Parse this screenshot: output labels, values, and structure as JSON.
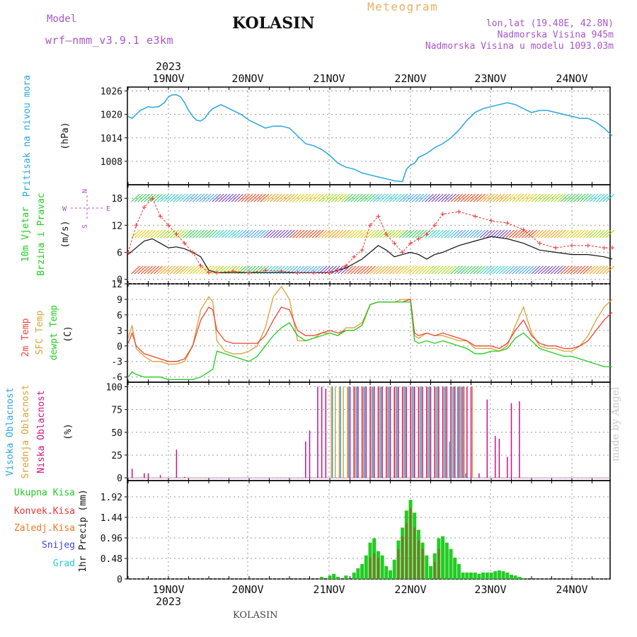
{
  "header": {
    "model_label": "Model",
    "model_name": "wrf–nmm_v3.9.1  e3km",
    "station": "KOLASIN",
    "meteogram": "Meteogram",
    "coords": "lon,lat (19.48E, 42.8N)",
    "elevation": "Nadmorska Visina 945m",
    "model_elevation": "Nadmorska Visina u modelu 1093.03m",
    "footer_station": "KOLASIN",
    "watermark": "made by Angel"
  },
  "colors": {
    "pressure": "#29a6e0",
    "precip_total": "#22cc22",
    "precip_conv": "#ee3333",
    "precip_frozen": "#ee7722",
    "precip_snow": "#4444dd",
    "precip_hail": "#22cccc",
    "temp_2m": "#ee4433",
    "temp_sfc": "#d9a23a",
    "temp_dew": "#22cc22",
    "cloud_high": "#29a6e0",
    "cloud_mid": "#d9a23a",
    "cloud_low": "#cc1188",
    "label_purple": "#aa55cc",
    "label_orange": "#e8a040",
    "wind_label": "#22cc22",
    "wind_speed": "#111111",
    "wind_gust": "#ee3333"
  },
  "chart_data": [
    {
      "type": "line",
      "name": "pressure",
      "ylabel": "Pritisak na nivou mora",
      "unit": "(hPa)",
      "yticks": [
        "1026",
        "1020",
        "1014",
        "1008"
      ],
      "ylim": [
        1002,
        1027
      ],
      "x_day_labels": [
        "19NOV",
        "20NOV",
        "21NOV",
        "22NOV",
        "23NOV",
        "24NOV"
      ],
      "x_year": "2023",
      "xlim": [
        -0.5,
        5.5
      ],
      "x": [
        -0.5,
        -0.45,
        -0.4,
        -0.35,
        -0.3,
        -0.25,
        -0.2,
        -0.12,
        -0.05,
        0,
        0.05,
        0.1,
        0.15,
        0.2,
        0.25,
        0.3,
        0.35,
        0.4,
        0.45,
        0.5,
        0.55,
        0.6,
        0.65,
        0.7,
        0.8,
        0.9,
        1.0,
        1.1,
        1.2,
        1.3,
        1.4,
        1.5,
        1.6,
        1.7,
        1.8,
        1.9,
        2.0,
        2.1,
        2.2,
        2.3,
        2.4,
        2.5,
        2.6,
        2.7,
        2.8,
        2.9,
        2.95,
        3.0,
        3.05,
        3.1,
        3.2,
        3.3,
        3.4,
        3.5,
        3.6,
        3.7,
        3.8,
        3.9,
        4.0,
        4.1,
        4.2,
        4.3,
        4.4,
        4.5,
        4.6,
        4.7,
        4.8,
        4.9,
        5.0,
        5.1,
        5.2,
        5.3,
        5.4,
        5.5
      ],
      "values": [
        1019.5,
        1019.0,
        1020.0,
        1021.0,
        1021.5,
        1022.0,
        1021.8,
        1022.0,
        1023.0,
        1024.5,
        1025.0,
        1025.0,
        1024.5,
        1023.0,
        1021.0,
        1019.5,
        1018.5,
        1018.3,
        1019.0,
        1020.5,
        1021.5,
        1022.0,
        1022.5,
        1022.0,
        1021.0,
        1020.0,
        1018.5,
        1017.5,
        1016.5,
        1017.0,
        1017.0,
        1016.5,
        1014.5,
        1012.5,
        1012.0,
        1011.0,
        1009.5,
        1007.5,
        1006.5,
        1006.0,
        1005.0,
        1004.5,
        1004.0,
        1003.5,
        1003.0,
        1002.8,
        1006.0,
        1007.0,
        1007.5,
        1009.0,
        1010.0,
        1011.5,
        1012.5,
        1014.0,
        1016.0,
        1018.5,
        1020.5,
        1021.5,
        1022.0,
        1022.5,
        1023.0,
        1022.5,
        1021.5,
        1020.5,
        1021.0,
        1021.0,
        1020.5,
        1020.0,
        1019.5,
        1019.0,
        1019.0,
        1018.0,
        1016.5,
        1014.5
      ]
    },
    {
      "type": "line",
      "name": "wind",
      "ylabel_line1": "10m Vjetar",
      "ylabel_line2": "Brzina i Pravac",
      "unit": "(m/s)",
      "yticks": [
        "18",
        "12",
        "6",
        "0"
      ],
      "ylim": [
        -1,
        21
      ],
      "compass": {
        "n": "N",
        "s": "S",
        "w": "W",
        "e": "E"
      },
      "x": [
        -0.5,
        -0.4,
        -0.3,
        -0.2,
        -0.1,
        0,
        0.1,
        0.2,
        0.3,
        0.4,
        0.5,
        0.6,
        0.8,
        1.0,
        1.2,
        1.4,
        1.6,
        1.8,
        2.0,
        2.1,
        2.2,
        2.3,
        2.4,
        2.5,
        2.6,
        2.7,
        2.8,
        2.9,
        3.0,
        3.1,
        3.2,
        3.3,
        3.4,
        3.6,
        3.8,
        4.0,
        4.2,
        4.4,
        4.6,
        4.8,
        5.0,
        5.2,
        5.4,
        5.5
      ],
      "speed": [
        5.5,
        7.0,
        8.5,
        9.0,
        8.0,
        7.0,
        7.2,
        6.8,
        6.0,
        5.0,
        2.0,
        1.5,
        1.5,
        1.5,
        1.5,
        1.5,
        1.5,
        1.5,
        1.5,
        2.0,
        2.5,
        3.5,
        4.5,
        6.0,
        7.5,
        6.5,
        5.0,
        5.5,
        6.0,
        5.5,
        4.5,
        5.5,
        6.0,
        7.5,
        8.5,
        9.5,
        9.0,
        8.0,
        6.5,
        6.0,
        5.5,
        5.5,
        5.0,
        4.5
      ],
      "gust": [
        6.0,
        12.0,
        16.0,
        18.0,
        14.0,
        12.0,
        10.0,
        8.0,
        6.0,
        3.0,
        1.5,
        1.5,
        1.8,
        1.5,
        2.0,
        1.8,
        1.5,
        1.5,
        1.5,
        2.0,
        3.0,
        5.0,
        6.5,
        12.0,
        14.0,
        10.0,
        8.0,
        6.0,
        8.0,
        9.0,
        10.0,
        12.0,
        14.5,
        15.0,
        14.0,
        13.0,
        12.5,
        11.0,
        8.0,
        7.0,
        7.5,
        7.5,
        7.0,
        7.0
      ]
    },
    {
      "type": "line",
      "name": "temperature",
      "ylabel_2m": "2m Temp",
      "ylabel_sfc": "SFC Temp",
      "ylabel_dew": "dewpt Temp",
      "unit": "(C)",
      "yticks": [
        "12",
        "9",
        "6",
        "3",
        "0",
        "-3",
        "-6"
      ],
      "ylim": [
        -7,
        12
      ],
      "x": [
        -0.5,
        -0.45,
        -0.4,
        -0.3,
        -0.2,
        -0.1,
        0,
        0.1,
        0.2,
        0.3,
        0.4,
        0.5,
        0.55,
        0.6,
        0.7,
        0.8,
        0.9,
        1.0,
        1.1,
        1.2,
        1.3,
        1.4,
        1.5,
        1.6,
        1.7,
        1.8,
        1.9,
        2.0,
        2.1,
        2.2,
        2.3,
        2.4,
        2.5,
        2.6,
        2.7,
        2.8,
        2.9,
        3.0,
        3.05,
        3.1,
        3.2,
        3.3,
        3.4,
        3.5,
        3.6,
        3.7,
        3.8,
        3.9,
        4.0,
        4.1,
        4.2,
        4.3,
        4.4,
        4.5,
        4.6,
        4.7,
        4.8,
        4.9,
        5.0,
        5.1,
        5.2,
        5.3,
        5.4,
        5.5
      ],
      "t2m": [
        0.5,
        2.5,
        0,
        -1.5,
        -2.0,
        -2.5,
        -3.0,
        -3.0,
        -2.5,
        0,
        5.0,
        7.5,
        7.0,
        3.0,
        1.0,
        0.5,
        0.5,
        0.5,
        0.5,
        2.0,
        5.0,
        7.5,
        7.0,
        3.0,
        2.0,
        2.0,
        2.5,
        3.0,
        2.5,
        3.0,
        3.0,
        4.0,
        8.0,
        8.5,
        8.5,
        8.5,
        8.5,
        9.0,
        2.5,
        2.0,
        2.5,
        2.0,
        2.5,
        2.0,
        1.5,
        1.0,
        0,
        0,
        0,
        -0.5,
        0.5,
        3.0,
        5.0,
        2.0,
        0.5,
        0,
        0,
        -0.5,
        -0.5,
        0,
        1.0,
        3.0,
        5.0,
        6.5
      ],
      "tsfc": [
        1.5,
        4.0,
        -0.5,
        -2.0,
        -3.0,
        -3.0,
        -3.5,
        -3.5,
        -3.0,
        0,
        7.0,
        9.5,
        8.5,
        1.0,
        -1.0,
        -1.5,
        -1.5,
        -1.0,
        0,
        3.5,
        9.5,
        11.5,
        9.0,
        1.0,
        1.0,
        1.5,
        2.5,
        2.5,
        2.0,
        3.5,
        3.5,
        4.5,
        8.0,
        8.5,
        8.5,
        8.5,
        9.0,
        9.0,
        2.0,
        1.5,
        2.5,
        2.0,
        2.0,
        1.5,
        1.0,
        1.0,
        -0.5,
        -0.5,
        -0.5,
        -1.0,
        0,
        4.0,
        7.5,
        2.5,
        0,
        -0.5,
        -0.5,
        -1.0,
        -1.0,
        0,
        2.0,
        5.0,
        7.5,
        9.0
      ],
      "dew": [
        -6.0,
        -5.0,
        -5.5,
        -6.0,
        -6.0,
        -6.0,
        -6.5,
        -6.5,
        -6.5,
        -6.5,
        -6.0,
        -5.0,
        -4.5,
        -1.0,
        -1.5,
        -2.0,
        -2.5,
        -3.0,
        -2.0,
        0,
        2.0,
        3.5,
        4.5,
        2.0,
        1.0,
        1.5,
        2.0,
        2.5,
        2.0,
        3.0,
        3.0,
        4.0,
        8.0,
        8.5,
        8.5,
        8.5,
        8.5,
        8.5,
        1.0,
        0.5,
        1.0,
        0.5,
        1.0,
        0.5,
        0,
        -0.5,
        -1.5,
        -1.5,
        -1.0,
        -1.0,
        -0.5,
        1.5,
        2.5,
        1.0,
        -0.5,
        -1.0,
        -1.5,
        -2.0,
        -2.0,
        -2.5,
        -3.0,
        -3.5,
        -4.0,
        -4.0
      ]
    },
    {
      "type": "bar",
      "name": "cloudiness",
      "ylabel_high": "Visoka Oblacnost",
      "ylabel_mid": "Srednja Oblacnost",
      "ylabel_low": "Niska Oblacnost",
      "unit": "(%)",
      "yticks": [
        "100",
        "75",
        "50",
        "25",
        "0"
      ],
      "ylim": [
        -3,
        105
      ],
      "low": [
        [
          -0.45,
          10
        ],
        [
          -0.3,
          5
        ],
        [
          -0.25,
          5
        ],
        [
          -0.1,
          3
        ],
        [
          0.1,
          31
        ],
        [
          0.2,
          1
        ],
        [
          1.7,
          40
        ],
        [
          1.75,
          52
        ],
        [
          1.85,
          100
        ],
        [
          1.9,
          100
        ],
        [
          1.95,
          98
        ],
        [
          2.25,
          100
        ],
        [
          2.3,
          100
        ],
        [
          2.35,
          100
        ],
        [
          2.4,
          100
        ],
        [
          2.45,
          100
        ],
        [
          2.5,
          100
        ],
        [
          2.55,
          100
        ],
        [
          2.6,
          100
        ],
        [
          2.65,
          100
        ],
        [
          2.7,
          100
        ],
        [
          2.75,
          100
        ],
        [
          2.8,
          100
        ],
        [
          2.85,
          100
        ],
        [
          2.9,
          100
        ],
        [
          2.95,
          100
        ],
        [
          3.0,
          100
        ],
        [
          3.05,
          100
        ],
        [
          3.1,
          100
        ],
        [
          3.15,
          100
        ],
        [
          3.2,
          100
        ],
        [
          3.25,
          100
        ],
        [
          3.3,
          100
        ],
        [
          3.35,
          100
        ],
        [
          3.4,
          100
        ],
        [
          3.45,
          100
        ],
        [
          3.5,
          100
        ],
        [
          3.55,
          100
        ],
        [
          3.6,
          100
        ],
        [
          3.65,
          100
        ],
        [
          3.7,
          100
        ],
        [
          3.75,
          100
        ],
        [
          3.85,
          5
        ],
        [
          3.95,
          86
        ],
        [
          4.05,
          46
        ],
        [
          4.1,
          43
        ],
        [
          4.2,
          23
        ],
        [
          4.25,
          82
        ],
        [
          4.35,
          84
        ]
      ],
      "mid": [
        [
          2.0,
          100
        ],
        [
          2.05,
          100
        ],
        [
          2.1,
          100
        ],
        [
          2.15,
          100
        ],
        [
          2.2,
          100
        ],
        [
          2.3,
          100
        ],
        [
          2.4,
          100
        ],
        [
          2.5,
          100
        ],
        [
          2.6,
          100
        ],
        [
          2.7,
          100
        ],
        [
          2.8,
          100
        ],
        [
          2.9,
          100
        ],
        [
          3.0,
          100
        ],
        [
          3.1,
          100
        ],
        [
          3.2,
          100
        ],
        [
          3.3,
          100
        ],
        [
          3.4,
          100
        ],
        [
          3.5,
          100
        ],
        [
          3.6,
          100
        ],
        [
          3.65,
          100
        ],
        [
          3.75,
          100
        ]
      ],
      "high": [
        [
          2.05,
          100
        ],
        [
          2.15,
          100
        ],
        [
          2.25,
          100
        ],
        [
          2.35,
          100
        ],
        [
          2.45,
          100
        ],
        [
          2.55,
          100
        ],
        [
          2.65,
          100
        ],
        [
          2.75,
          100
        ],
        [
          2.85,
          100
        ],
        [
          2.95,
          100
        ],
        [
          3.05,
          100
        ],
        [
          3.15,
          100
        ],
        [
          3.25,
          100
        ],
        [
          3.35,
          100
        ],
        [
          3.45,
          100
        ],
        [
          3.5,
          40
        ],
        [
          3.55,
          100
        ],
        [
          3.6,
          100
        ],
        [
          3.65,
          100
        ],
        [
          3.7,
          5
        ]
      ]
    },
    {
      "type": "bar",
      "name": "precipitation",
      "ylabel": "1hr Precip (mm)",
      "yticks": [
        "1.92",
        "1.44",
        "0.96",
        "0.48",
        "0"
      ],
      "ylim": [
        0,
        2.3
      ],
      "legend": [
        "Ukupna Kisa",
        "Konvek.Kisa",
        "Zaledj.Kisa",
        "Snijeg",
        "Grad"
      ],
      "total": [
        [
          1.9,
          0.05
        ],
        [
          2.0,
          0.08
        ],
        [
          2.05,
          0.12
        ],
        [
          2.1,
          0.05
        ],
        [
          2.2,
          0.08
        ],
        [
          2.3,
          0.15
        ],
        [
          2.35,
          0.25
        ],
        [
          2.4,
          0.35
        ],
        [
          2.45,
          0.55
        ],
        [
          2.5,
          0.85
        ],
        [
          2.55,
          0.95
        ],
        [
          2.6,
          0.65
        ],
        [
          2.65,
          0.55
        ],
        [
          2.7,
          0.3
        ],
        [
          2.75,
          0.2
        ],
        [
          2.8,
          0.45
        ],
        [
          2.85,
          0.9
        ],
        [
          2.9,
          1.2
        ],
        [
          2.95,
          1.6
        ],
        [
          3.0,
          1.85
        ],
        [
          3.05,
          1.55
        ],
        [
          3.1,
          1.15
        ],
        [
          3.15,
          0.85
        ],
        [
          3.2,
          0.55
        ],
        [
          3.25,
          0.3
        ],
        [
          3.3,
          0.6
        ],
        [
          3.35,
          0.95
        ],
        [
          3.4,
          1.0
        ],
        [
          3.45,
          0.85
        ],
        [
          3.5,
          0.7
        ],
        [
          3.55,
          0.5
        ],
        [
          3.6,
          0.35
        ],
        [
          3.65,
          0.15
        ],
        [
          3.7,
          0.15
        ],
        [
          3.75,
          0.15
        ],
        [
          3.8,
          0.15
        ],
        [
          3.85,
          0.12
        ],
        [
          3.9,
          0.15
        ],
        [
          3.95,
          0.15
        ],
        [
          4.0,
          0.15
        ],
        [
          4.05,
          0.18
        ],
        [
          4.1,
          0.2
        ],
        [
          4.15,
          0.18
        ],
        [
          4.2,
          0.15
        ],
        [
          4.25,
          0.1
        ],
        [
          4.3,
          0.08
        ],
        [
          4.35,
          0.05
        ],
        [
          4.4,
          0.02
        ]
      ],
      "conv": [
        [
          2.5,
          0.5
        ],
        [
          2.55,
          0.6
        ],
        [
          2.6,
          0.5
        ],
        [
          2.85,
          0.7
        ],
        [
          2.9,
          1.0
        ],
        [
          2.95,
          1.3
        ],
        [
          3.0,
          1.65
        ],
        [
          3.05,
          1.2
        ],
        [
          3.1,
          0.9
        ],
        [
          3.15,
          0.7
        ],
        [
          3.3,
          0.4
        ],
        [
          3.35,
          0.7
        ]
      ]
    }
  ]
}
